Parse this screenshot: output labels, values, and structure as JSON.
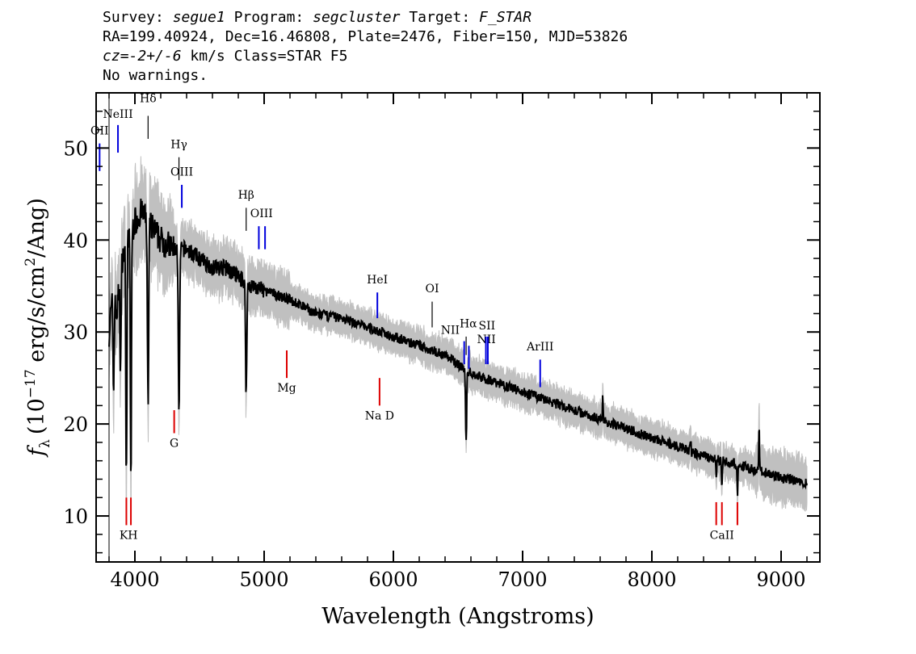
{
  "header": {
    "line1": {
      "survey_label": "Survey: ",
      "survey": "segue1",
      "program_label": " Program: ",
      "program": "segcluster",
      "target_label": " Target: ",
      "target": "F_STAR"
    },
    "line2": "RA=199.40924, Dec=16.46808, Plate=2476, Fiber=150, MJD=53826",
    "line3": {
      "cz_label": "cz",
      "cz_eq": "=",
      "cz": "-2+/-6",
      "cz_unit": " km/s Class=STAR F5"
    },
    "line4": "No warnings."
  },
  "chart_data": {
    "type": "line",
    "title": "",
    "xlabel": "Wavelength (Angstroms)",
    "ylabel": "f_λ (10^-17 erg/s/cm^2/Ang)",
    "ylabel_parts": {
      "f": "f",
      "lambda": "λ",
      "open": "(10",
      "exp": "−17",
      "mid": " erg/s/cm",
      "sq": "2",
      "close": "/Ang)"
    },
    "xlim": [
      3700,
      9300
    ],
    "ylim": [
      5,
      56
    ],
    "xticks": [
      4000,
      5000,
      6000,
      7000,
      8000,
      9000
    ],
    "xtick_labels": [
      "4000",
      "5000",
      "6000",
      "7000",
      "8000",
      "9000"
    ],
    "yticks": [
      10,
      20,
      30,
      40,
      50
    ],
    "ytick_labels": [
      "10",
      "20",
      "30",
      "40",
      "50"
    ],
    "grid": false,
    "colors": {
      "flux": "#000000",
      "error": "#c0c0c0",
      "emission": "#0000dd",
      "absorption": "#dd0000",
      "balmer": "#000000"
    },
    "continuum": [
      [
        3800,
        30
      ],
      [
        3830,
        34
      ],
      [
        3860,
        32
      ],
      [
        3900,
        38
      ],
      [
        3950,
        40
      ],
      [
        4000,
        42
      ],
      [
        4050,
        43
      ],
      [
        4100,
        42
      ],
      [
        4200,
        40
      ],
      [
        4300,
        39
      ],
      [
        4400,
        39
      ],
      [
        4500,
        38
      ],
      [
        4600,
        37
      ],
      [
        4700,
        37
      ],
      [
        4800,
        36
      ],
      [
        4900,
        35
      ],
      [
        5000,
        34.5
      ],
      [
        5200,
        33.5
      ],
      [
        5400,
        32
      ],
      [
        5600,
        31.5
      ],
      [
        5800,
        30.5
      ],
      [
        6000,
        29.5
      ],
      [
        6200,
        28.5
      ],
      [
        6400,
        27.5
      ],
      [
        6600,
        25.5
      ],
      [
        6800,
        24.5
      ],
      [
        7000,
        23.5
      ],
      [
        7200,
        22.5
      ],
      [
        7400,
        21.5
      ],
      [
        7600,
        20.5
      ],
      [
        7800,
        19.5
      ],
      [
        8000,
        18.5
      ],
      [
        8200,
        17.5
      ],
      [
        8400,
        16.5
      ],
      [
        8600,
        15.8
      ],
      [
        8800,
        15
      ],
      [
        9000,
        14.2
      ],
      [
        9200,
        13.5
      ]
    ],
    "absorption_features": [
      {
        "x": 3835,
        "depth": 10,
        "width": 6
      },
      {
        "x": 3889,
        "depth": 10,
        "width": 6
      },
      {
        "x": 3934,
        "depth": 25,
        "width": 6
      },
      {
        "x": 3969,
        "depth": 27,
        "width": 6
      },
      {
        "x": 4102,
        "depth": 20,
        "width": 7
      },
      {
        "x": 4341,
        "depth": 18,
        "width": 7
      },
      {
        "x": 4861,
        "depth": 12,
        "width": 7
      },
      {
        "x": 6563,
        "depth": 8,
        "width": 6
      },
      {
        "x": 8498,
        "depth": 2,
        "width": 4
      },
      {
        "x": 8542,
        "depth": 3,
        "width": 4
      },
      {
        "x": 8662,
        "depth": 3,
        "width": 4
      }
    ],
    "emission_spikes": [
      {
        "x": 7620,
        "height": 3
      },
      {
        "x": 8830,
        "height": 5
      },
      {
        "x": 8300,
        "height": 1.5
      }
    ],
    "line_markers": [
      {
        "label": "OII",
        "x": 3727,
        "y1": 47.5,
        "y2": 50.5,
        "ly": 51.5,
        "color": "emission"
      },
      {
        "label": "NeIII",
        "x": 3869,
        "y1": 49.5,
        "y2": 52.5,
        "ly": 53.3,
        "color": "emission"
      },
      {
        "label": "Hδ",
        "x": 4102,
        "y1": 51,
        "y2": 53.5,
        "ly": 55,
        "color": "balmer"
      },
      {
        "label": "Hγ",
        "x": 4341,
        "y1": 46.5,
        "y2": 49,
        "ly": 50,
        "color": "balmer"
      },
      {
        "label": "OIII",
        "x": 4363,
        "y1": 43.5,
        "y2": 46,
        "ly": 47,
        "color": "emission"
      },
      {
        "label": "Hβ",
        "x": 4861,
        "y1": 41,
        "y2": 43.5,
        "ly": 44.5,
        "color": "balmer"
      },
      {
        "label": "OIII",
        "x": 4980,
        "y1": 39,
        "y2": 41.5,
        "ly": 42.5,
        "color": "emission",
        "twin": [
          4959,
          5007
        ]
      },
      {
        "label": "HeI",
        "x": 5876,
        "y1": 31.5,
        "y2": 34.3,
        "ly": 35.3,
        "color": "emission"
      },
      {
        "label": "OI",
        "x": 6300,
        "y1": 30.5,
        "y2": 33.3,
        "ly": 34.3,
        "color": "balmer"
      },
      {
        "label": "NII",
        "x": 6548,
        "y1": 26.5,
        "y2": 29,
        "ly": 29.8,
        "color": "emission",
        "lx": 6440
      },
      {
        "label": "Hα",
        "x": 6563,
        "y1": 27.5,
        "y2": 29.5,
        "ly": 30.5,
        "color": "balmer",
        "lx": 6580
      },
      {
        "label": "NII",
        "x": 6584,
        "y1": 26,
        "y2": 28.5,
        "ly": 29.2,
        "color": "emission",
        "lx": 6720,
        "ly_override": 28.8
      },
      {
        "label": "SII",
        "x": 6724,
        "y1": 26.5,
        "y2": 29.5,
        "ly": 30.3,
        "color": "emission",
        "twin": [
          6716,
          6731
        ]
      },
      {
        "label": "ArIII",
        "x": 7136,
        "y1": 24,
        "y2": 27,
        "ly": 28,
        "color": "emission"
      },
      {
        "label": "KH",
        "x": 3951,
        "y1": 9,
        "y2": 12,
        "ly": 7.5,
        "color": "absorption",
        "twin": [
          3934,
          3969
        ],
        "below": true
      },
      {
        "label": "G",
        "x": 4304,
        "y1": 19,
        "y2": 21.5,
        "ly": 17.5,
        "color": "absorption",
        "below": true
      },
      {
        "label": "Mg",
        "x": 5175,
        "y1": 25,
        "y2": 28,
        "ly": 23.5,
        "color": "absorption",
        "below": true
      },
      {
        "label": "Na D",
        "x": 5893,
        "y1": 22,
        "y2": 25,
        "ly": 20.5,
        "color": "absorption",
        "below": true
      },
      {
        "label": "CaII",
        "x": 8542,
        "y1": 9,
        "y2": 11.5,
        "ly": 7.5,
        "color": "absorption",
        "twin": [
          8498,
          8542,
          8662
        ],
        "below": true
      }
    ]
  }
}
